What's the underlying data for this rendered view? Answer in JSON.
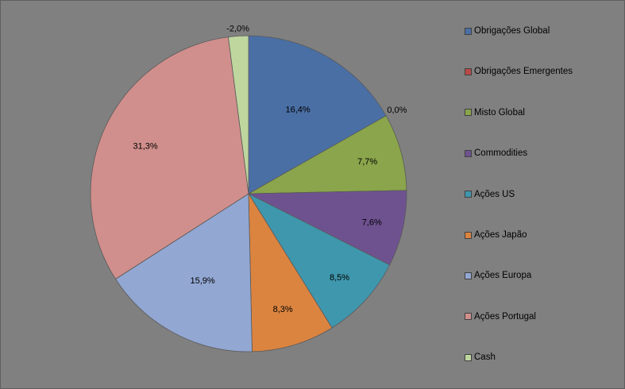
{
  "chart_data": {
    "type": "pie",
    "categories": [
      "Obrigações Global",
      "Obrigações Emergentes",
      "Misto Global",
      "Commodities",
      "Ações US",
      "Ações Japão",
      "Ações Europa",
      "Ações Portugal",
      "Cash"
    ],
    "values": [
      16.4,
      0.0,
      7.7,
      7.6,
      8.5,
      8.3,
      15.9,
      31.3,
      -2.0
    ],
    "labels": [
      "16,4%",
      "0,0%",
      "7,7%",
      "7,6%",
      "8,5%",
      "8,3%",
      "15,9%",
      "31,3%",
      "-2,0%"
    ],
    "colors": [
      "#4a6fa5",
      "#b94a48",
      "#8aa54b",
      "#6e5290",
      "#3f97ad",
      "#db8440",
      "#92a7d2",
      "#d08f8c",
      "#bfd79f"
    ],
    "legend_position": "right",
    "background": "#808080",
    "title": "",
    "xlabel": "",
    "ylabel": ""
  }
}
